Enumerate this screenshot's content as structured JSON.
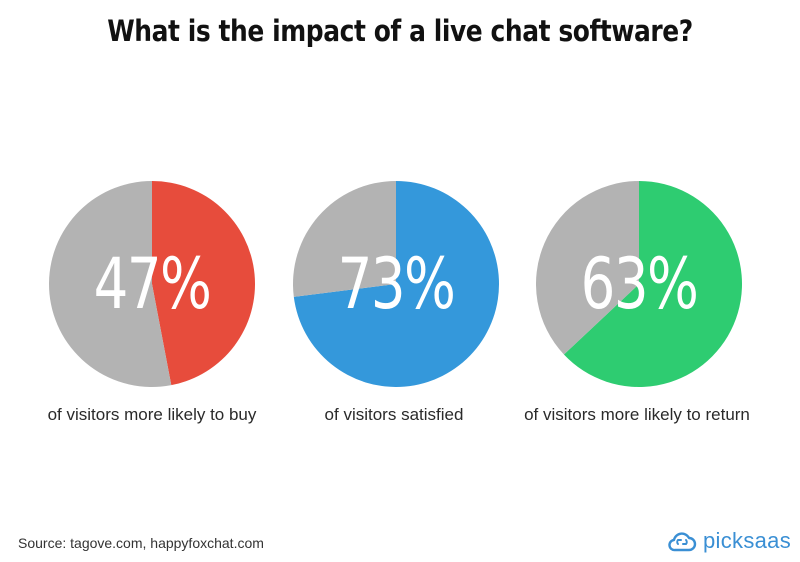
{
  "title": "What is the impact of a live chat software?",
  "chart_data": [
    {
      "type": "pie",
      "value_label": "47%",
      "caption": "of visitors more likely to buy",
      "slices": [
        {
          "label": "",
          "value": 47,
          "color": "#e74c3c"
        },
        {
          "value": 53,
          "color": "#b3b3b3"
        }
      ]
    },
    {
      "type": "pie",
      "value_label": "73%",
      "caption": "of visitors satisfied",
      "slices": [
        {
          "label": "",
          "value": 73,
          "color": "#3498db"
        },
        {
          "value": 27,
          "color": "#b3b3b3"
        }
      ]
    },
    {
      "type": "pie",
      "value_label": "63%",
      "caption": "of visitors more likely to return",
      "slices": [
        {
          "label": "",
          "value": 63,
          "color": "#2ecc71"
        },
        {
          "value": 37,
          "color": "#b3b3b3"
        }
      ]
    }
  ],
  "source": "Source: tagove.com, happyfoxchat.com",
  "brand": {
    "name": "picksaas",
    "icon": "cloud-link-icon",
    "color": "#3a8fd4"
  }
}
